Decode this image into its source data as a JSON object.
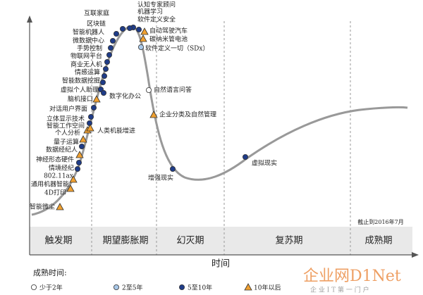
{
  "phases": [
    "触发期",
    "期望膨胀期",
    "幻灭期",
    "复苏期",
    "成熟期"
  ],
  "x_axis_label": "时间",
  "note": "截止到2016年7月",
  "legend": {
    "title": "成熟时间:",
    "items": [
      "少于2年",
      "2至5年",
      "5至10年",
      "10年以后"
    ]
  },
  "technologies": [
    {
      "label": "认知专家顾问",
      "maturity": "5至10年"
    },
    {
      "label": "机器学习",
      "maturity": "5至10年"
    },
    {
      "label": "软件定义安全",
      "maturity": "5至10年"
    },
    {
      "label": "互联家庭",
      "maturity": "5至10年"
    },
    {
      "label": "区块链",
      "maturity": "5至10年"
    },
    {
      "label": "智能机器人",
      "maturity": "5至10年"
    },
    {
      "label": "微数据中心",
      "maturity": "5至10年"
    },
    {
      "label": "手势控制",
      "maturity": "5至10年"
    },
    {
      "label": "物联网平台",
      "maturity": "5至10年"
    },
    {
      "label": "商业无人机",
      "maturity": "5至10年"
    },
    {
      "label": "情感运算",
      "maturity": "5至10年"
    },
    {
      "label": "智能数据挖掘",
      "maturity": "5至10年"
    },
    {
      "label": "虚拟个人助理",
      "maturity": "5至10年"
    },
    {
      "label": "脑机接口",
      "maturity": "10年以后"
    },
    {
      "label": "对话用户界面",
      "maturity": "5至10年"
    },
    {
      "label": "立体显示技术",
      "maturity": "5至10年"
    },
    {
      "label": "智能工作空间",
      "maturity": "5至10年"
    },
    {
      "label": "个人分析",
      "maturity": "10年以后"
    },
    {
      "label": "人类机能增进",
      "maturity": "10年以后"
    },
    {
      "label": "量子运算",
      "maturity": "10年以后"
    },
    {
      "label": "数据经纪人",
      "maturity": "5至10年"
    },
    {
      "label": "神经形态硬件",
      "maturity": "10年以后"
    },
    {
      "label": "情境经纪",
      "maturity": "5至10年"
    },
    {
      "label": "802.11ax",
      "maturity": "5至10年"
    },
    {
      "label": "通用机器智能",
      "maturity": "10年以后"
    },
    {
      "label": "4D打印",
      "maturity": "10年以后"
    },
    {
      "label": "智能微尘",
      "maturity": "10年以后"
    },
    {
      "label": "自动驾驶汽车",
      "maturity": "10年以后"
    },
    {
      "label": "碳纳米管电池",
      "maturity": "10年以后"
    },
    {
      "label": "软件定义一切（SDx）",
      "maturity": "2至5年"
    },
    {
      "label": "数字化办公",
      "maturity": "5至10年"
    },
    {
      "label": "自然语言问答",
      "maturity": "少于2年"
    },
    {
      "label": "企业分类及自然管理",
      "maturity": "10年以后"
    },
    {
      "label": "增强现实",
      "maturity": "5至10年"
    },
    {
      "label": "虚拟现实",
      "maturity": "5至10年"
    }
  ],
  "watermark": {
    "brand": "企业网D1Net",
    "slogan": "企 业 I T 第 一 门 户"
  }
}
